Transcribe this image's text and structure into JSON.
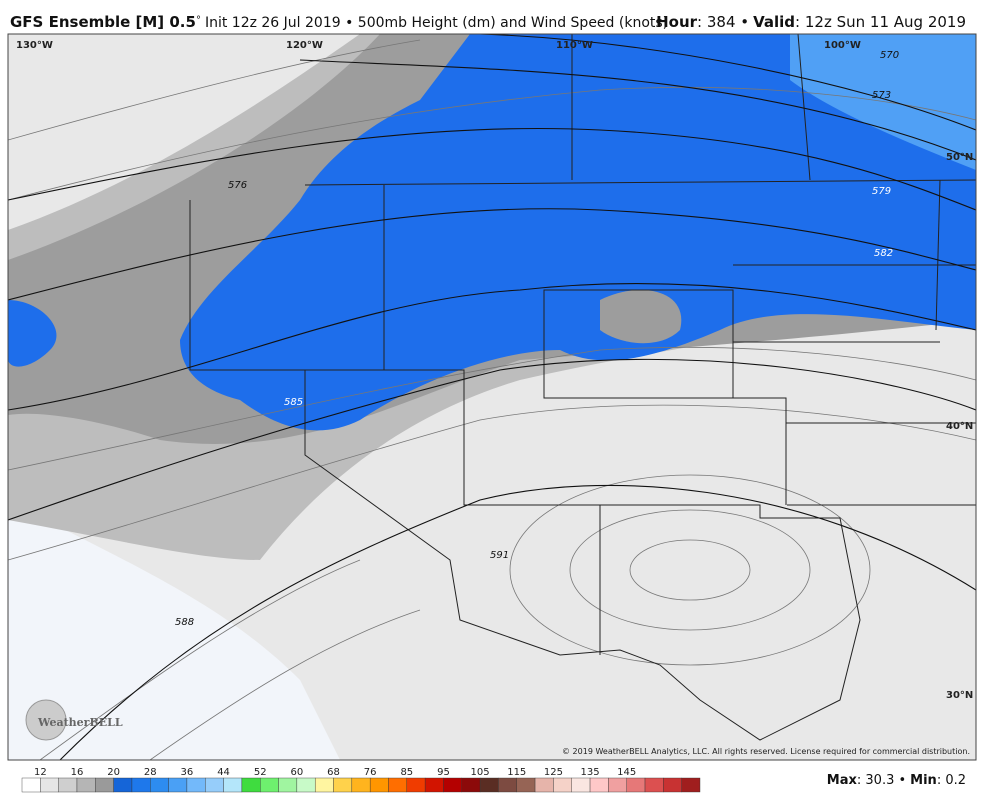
{
  "header": {
    "model": "GFS Ensemble [M] 0.5",
    "degree": "°",
    "description": "Init 12z 26 Jul 2019 • 500mb Height (dm) and Wind Speed (knots)",
    "hour_label": "Hour",
    "hour_value": ": 384 •",
    "valid_label": "Valid",
    "valid_value": ": 12z Sun 11 Aug 2019"
  },
  "map": {
    "longitudes": [
      "130°W",
      "120°W",
      "110°W",
      "100°W"
    ],
    "latitudes": [
      "50°N",
      "40°N",
      "30°N"
    ],
    "contour_labels": [
      570,
      573,
      576,
      579,
      582,
      585,
      588,
      591
    ],
    "logo": "WeatherBELL",
    "copyright": "© 2019 WeatherBELL Analytics, LLC. All rights reserved. License required for commercial distribution."
  },
  "colorbar": {
    "ticks": [
      12,
      16,
      20,
      28,
      36,
      44,
      52,
      60,
      68,
      76,
      85,
      95,
      105,
      115,
      125,
      135,
      145
    ],
    "colors": [
      "#ffffff",
      "#e6e6e6",
      "#cfcfcf",
      "#b5b5b5",
      "#9a9a9a",
      "#1565d8",
      "#1e78eb",
      "#2d8cf0",
      "#4aa0f5",
      "#73b9fa",
      "#96cdfa",
      "#b4e6fa",
      "#3fdc3f",
      "#6ef06e",
      "#a0f5a0",
      "#c8fac8",
      "#fff5a0",
      "#ffd24b",
      "#ffb41e",
      "#ff9600",
      "#ff6e00",
      "#f03c00",
      "#d21400",
      "#b40000",
      "#8c0a0a",
      "#5a2d23",
      "#7d4b41",
      "#966455",
      "#e6b4aa",
      "#f5d2c8",
      "#fae6e1",
      "#ffc8c8",
      "#f0a0a0",
      "#e67878",
      "#dc5050",
      "#c83232",
      "#a01e1e"
    ]
  },
  "footer": {
    "max_label": "Max",
    "max_value": ": 30.3 •",
    "min_label": "Min",
    "min_value": ": 0.2"
  }
}
